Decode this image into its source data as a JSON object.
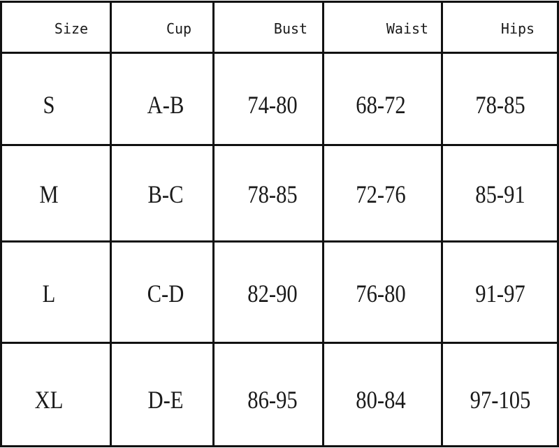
{
  "table": {
    "headers": [
      "Size",
      "Cup",
      "Bust",
      "Waist",
      "Hips"
    ],
    "rows": [
      [
        "S",
        "A-B",
        "74-80",
        "68-72",
        "78-85"
      ],
      [
        "M",
        "B-C",
        "78-85",
        "72-76",
        "85-91"
      ],
      [
        "L",
        "C-D",
        "82-90",
        "76-80",
        "91-97"
      ],
      [
        "XL",
        "D-E",
        "86-95",
        "80-84",
        "97-105"
      ]
    ]
  }
}
